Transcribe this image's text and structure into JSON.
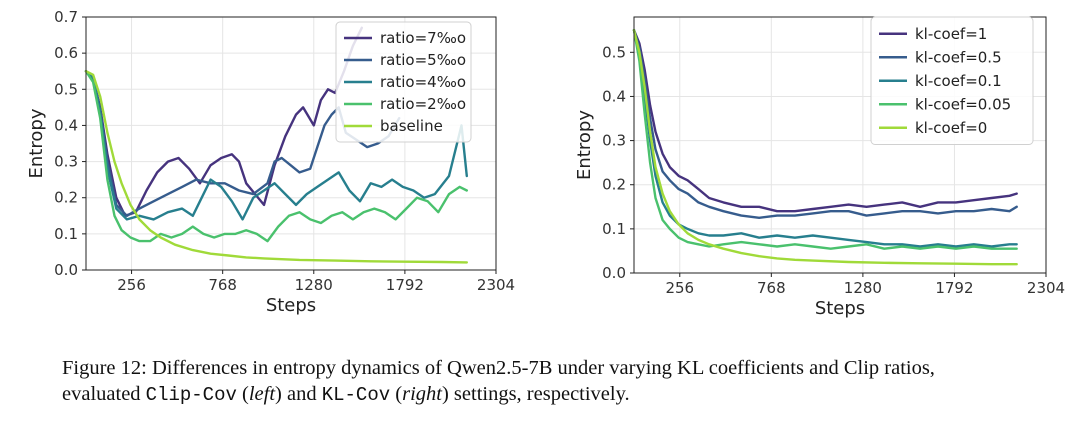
{
  "chart_data": [
    {
      "type": "line",
      "xlabel": "Steps",
      "ylabel": "Entropy",
      "xlim": [
        0,
        2304
      ],
      "ylim": [
        0,
        0.7
      ],
      "xticks": [
        256,
        768,
        1280,
        1792,
        2304
      ],
      "yticks": [
        0.0,
        0.1,
        0.2,
        0.3,
        0.4,
        0.5,
        0.6,
        0.7
      ],
      "xtick_labels": [
        "256",
        "768",
        "1280",
        "1792",
        "2304"
      ],
      "ytick_labels": [
        "0.0",
        "0.1",
        "0.2",
        "0.3",
        "0.4",
        "0.5",
        "0.6",
        "0.7"
      ],
      "grid": true,
      "legend_position": "top-right",
      "series": [
        {
          "name": "ratio=7‰o",
          "color": "#46337e",
          "x": [
            0,
            40,
            80,
            120,
            170,
            220,
            280,
            340,
            400,
            460,
            520,
            580,
            640,
            700,
            760,
            820,
            860,
            900,
            950,
            1000,
            1060,
            1120,
            1180,
            1220,
            1280,
            1320,
            1360,
            1400,
            1450,
            1500,
            1550
          ],
          "y": [
            0.55,
            0.53,
            0.45,
            0.32,
            0.2,
            0.15,
            0.16,
            0.22,
            0.27,
            0.3,
            0.31,
            0.28,
            0.24,
            0.29,
            0.31,
            0.32,
            0.3,
            0.24,
            0.21,
            0.18,
            0.29,
            0.37,
            0.43,
            0.45,
            0.4,
            0.47,
            0.5,
            0.49,
            0.55,
            0.62,
            0.67
          ]
        },
        {
          "name": "ratio=5‰o",
          "color": "#365c8d",
          "x": [
            0,
            40,
            80,
            120,
            170,
            230,
            300,
            380,
            460,
            540,
            620,
            700,
            780,
            860,
            940,
            1020,
            1060,
            1100,
            1150,
            1200,
            1260,
            1300,
            1340,
            1380,
            1420,
            1460,
            1520,
            1580,
            1640,
            1700,
            1760
          ],
          "y": [
            0.55,
            0.53,
            0.44,
            0.3,
            0.18,
            0.15,
            0.17,
            0.19,
            0.21,
            0.23,
            0.25,
            0.24,
            0.24,
            0.22,
            0.21,
            0.24,
            0.3,
            0.31,
            0.29,
            0.27,
            0.28,
            0.34,
            0.4,
            0.43,
            0.45,
            0.38,
            0.36,
            0.34,
            0.35,
            0.37,
            0.42
          ]
        },
        {
          "name": "ratio=4‰o",
          "color": "#277f8e",
          "x": [
            0,
            40,
            80,
            120,
            170,
            230,
            300,
            380,
            460,
            540,
            600,
            650,
            700,
            760,
            820,
            880,
            940,
            1000,
            1060,
            1120,
            1180,
            1240,
            1300,
            1360,
            1420,
            1480,
            1540,
            1600,
            1660,
            1720,
            1780,
            1840,
            1900,
            1960,
            2040,
            2110,
            2140
          ],
          "y": [
            0.55,
            0.53,
            0.44,
            0.28,
            0.17,
            0.14,
            0.15,
            0.14,
            0.16,
            0.17,
            0.15,
            0.2,
            0.25,
            0.23,
            0.19,
            0.14,
            0.2,
            0.22,
            0.24,
            0.21,
            0.18,
            0.21,
            0.23,
            0.25,
            0.27,
            0.22,
            0.19,
            0.24,
            0.23,
            0.25,
            0.23,
            0.22,
            0.2,
            0.21,
            0.26,
            0.4,
            0.26
          ]
        },
        {
          "name": "ratio=2‰o",
          "color": "#4ac16d",
          "x": [
            0,
            40,
            80,
            120,
            160,
            200,
            250,
            300,
            360,
            420,
            480,
            540,
            600,
            660,
            720,
            780,
            840,
            900,
            960,
            1020,
            1080,
            1140,
            1200,
            1260,
            1320,
            1380,
            1440,
            1500,
            1560,
            1620,
            1680,
            1740,
            1800,
            1860,
            1920,
            1980,
            2040,
            2100,
            2140
          ],
          "y": [
            0.55,
            0.52,
            0.42,
            0.25,
            0.15,
            0.11,
            0.09,
            0.08,
            0.08,
            0.1,
            0.09,
            0.1,
            0.12,
            0.1,
            0.09,
            0.1,
            0.1,
            0.11,
            0.1,
            0.08,
            0.12,
            0.15,
            0.16,
            0.14,
            0.13,
            0.15,
            0.16,
            0.14,
            0.16,
            0.17,
            0.16,
            0.14,
            0.17,
            0.2,
            0.19,
            0.16,
            0.21,
            0.23,
            0.22
          ]
        },
        {
          "name": "baseline",
          "color": "#a0da39",
          "x": [
            0,
            40,
            80,
            120,
            160,
            200,
            250,
            300,
            360,
            420,
            500,
            600,
            700,
            800,
            900,
            1000,
            1200,
            1400,
            1600,
            1800,
            2000,
            2140
          ],
          "y": [
            0.55,
            0.54,
            0.48,
            0.38,
            0.3,
            0.24,
            0.18,
            0.14,
            0.11,
            0.09,
            0.07,
            0.055,
            0.045,
            0.04,
            0.035,
            0.032,
            0.028,
            0.026,
            0.024,
            0.023,
            0.022,
            0.021
          ]
        }
      ]
    },
    {
      "type": "line",
      "xlabel": "Steps",
      "ylabel": "Entropy",
      "xlim": [
        0,
        2304
      ],
      "ylim": [
        0,
        0.58
      ],
      "xticks": [
        256,
        768,
        1280,
        1792,
        2304
      ],
      "yticks": [
        0.0,
        0.1,
        0.2,
        0.3,
        0.4,
        0.5
      ],
      "xtick_labels": [
        "256",
        "768",
        "1280",
        "1792",
        "2304"
      ],
      "ytick_labels": [
        "0.0",
        "0.1",
        "0.2",
        "0.3",
        "0.4",
        "0.5"
      ],
      "grid": true,
      "legend_position": "top-right",
      "series": [
        {
          "name": "kl-coef=1",
          "color": "#46337e",
          "x": [
            0,
            30,
            60,
            90,
            120,
            160,
            200,
            250,
            300,
            360,
            420,
            500,
            600,
            700,
            800,
            900,
            1000,
            1100,
            1200,
            1300,
            1400,
            1500,
            1600,
            1700,
            1800,
            1900,
            2000,
            2100,
            2140
          ],
          "y": [
            0.55,
            0.52,
            0.46,
            0.38,
            0.32,
            0.27,
            0.24,
            0.22,
            0.21,
            0.19,
            0.17,
            0.16,
            0.15,
            0.15,
            0.14,
            0.14,
            0.145,
            0.15,
            0.155,
            0.15,
            0.155,
            0.16,
            0.15,
            0.16,
            0.16,
            0.165,
            0.17,
            0.175,
            0.18
          ]
        },
        {
          "name": "kl-coef=0.5",
          "color": "#365c8d",
          "x": [
            0,
            30,
            60,
            90,
            120,
            160,
            200,
            250,
            300,
            360,
            420,
            500,
            600,
            700,
            800,
            900,
            1000,
            1100,
            1200,
            1300,
            1400,
            1500,
            1600,
            1700,
            1800,
            1900,
            2000,
            2100,
            2140
          ],
          "y": [
            0.55,
            0.51,
            0.44,
            0.35,
            0.28,
            0.23,
            0.21,
            0.19,
            0.18,
            0.16,
            0.15,
            0.14,
            0.13,
            0.125,
            0.13,
            0.13,
            0.135,
            0.14,
            0.14,
            0.13,
            0.135,
            0.14,
            0.14,
            0.135,
            0.14,
            0.14,
            0.145,
            0.14,
            0.15
          ]
        },
        {
          "name": "kl-coef=0.1",
          "color": "#277f8e",
          "x": [
            0,
            30,
            60,
            90,
            120,
            160,
            200,
            250,
            300,
            360,
            420,
            500,
            600,
            700,
            800,
            900,
            1000,
            1100,
            1200,
            1300,
            1400,
            1500,
            1600,
            1700,
            1800,
            1900,
            2000,
            2100,
            2140
          ],
          "y": [
            0.55,
            0.5,
            0.4,
            0.3,
            0.22,
            0.16,
            0.13,
            0.11,
            0.1,
            0.09,
            0.085,
            0.085,
            0.09,
            0.08,
            0.085,
            0.08,
            0.085,
            0.08,
            0.075,
            0.07,
            0.065,
            0.065,
            0.06,
            0.065,
            0.06,
            0.065,
            0.06,
            0.065,
            0.065
          ]
        },
        {
          "name": "kl-coef=0.05",
          "color": "#4ac16d",
          "x": [
            0,
            30,
            60,
            90,
            120,
            160,
            200,
            250,
            300,
            360,
            420,
            500,
            600,
            700,
            800,
            900,
            1000,
            1100,
            1200,
            1300,
            1400,
            1500,
            1600,
            1700,
            1800,
            1900,
            2000,
            2100,
            2140
          ],
          "y": [
            0.55,
            0.48,
            0.36,
            0.25,
            0.17,
            0.12,
            0.1,
            0.08,
            0.07,
            0.065,
            0.06,
            0.065,
            0.07,
            0.065,
            0.06,
            0.065,
            0.06,
            0.055,
            0.06,
            0.065,
            0.055,
            0.06,
            0.055,
            0.06,
            0.055,
            0.06,
            0.055,
            0.055,
            0.055
          ]
        },
        {
          "name": "kl-coef=0",
          "color": "#a0da39",
          "x": [
            0,
            30,
            60,
            90,
            120,
            160,
            200,
            250,
            300,
            360,
            420,
            500,
            600,
            700,
            800,
            900,
            1000,
            1200,
            1400,
            1600,
            1800,
            2000,
            2140
          ],
          "y": [
            0.55,
            0.5,
            0.42,
            0.32,
            0.24,
            0.18,
            0.14,
            0.11,
            0.09,
            0.075,
            0.065,
            0.055,
            0.045,
            0.038,
            0.033,
            0.03,
            0.028,
            0.025,
            0.023,
            0.022,
            0.021,
            0.02,
            0.02
          ]
        }
      ]
    }
  ],
  "caption": {
    "prefix": "Figure 12: Differences in entropy dynamics of Qwen2.5-7B under varying KL coefficients and Clip ratios,",
    "line2_start": "evaluated ",
    "clip_cov": "Clip-Cov",
    "paren_left_open": " (",
    "left": "left",
    "paren_left_close": ") and ",
    "kl_cov": "KL-Cov",
    "paren_right_open": " (",
    "right": "right",
    "suffix": ") settings, respectively."
  }
}
